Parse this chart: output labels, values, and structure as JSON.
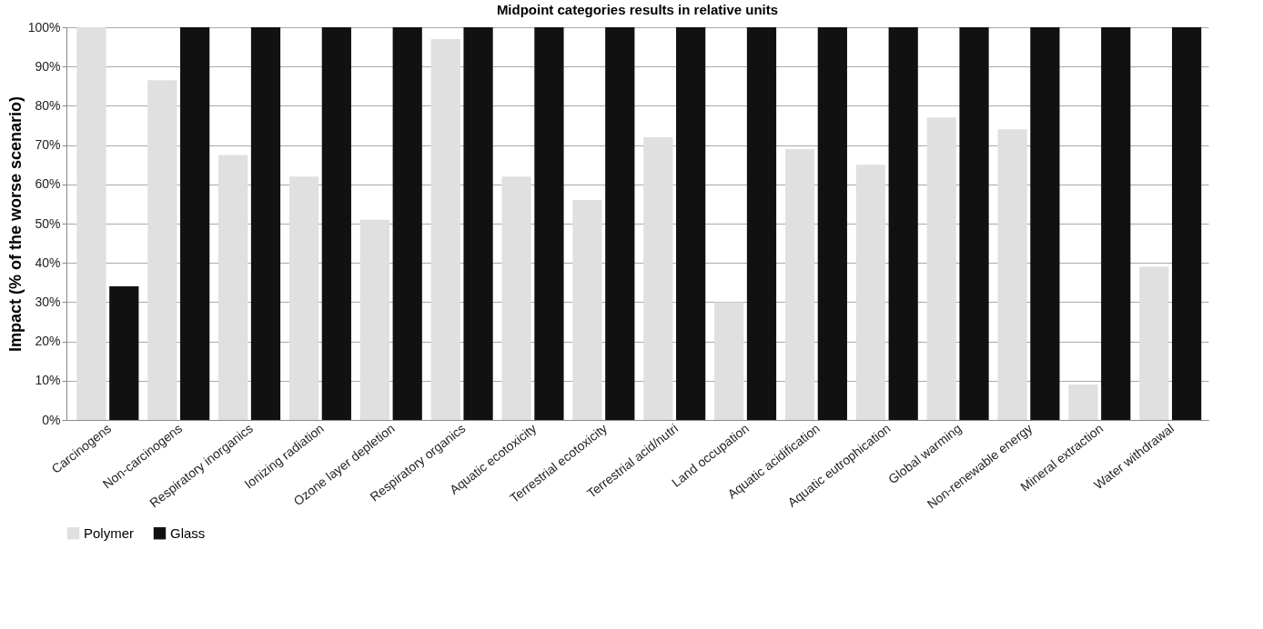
{
  "chart_data": {
    "type": "bar",
    "title": "Midpoint categories results in relative units",
    "ylabel": "Impact (% of the worse scenario)",
    "categories": [
      "Carcinogens",
      "Non-carcinogens",
      "Respiratory inorganics",
      "Ionizing radiation",
      "Ozone layer depletion",
      "Respiratory organics",
      "Aquatic ecotoxicity",
      "Terrestrial ecotoxicity",
      "Terrestrial acid/nutri",
      "Land occupation",
      "Aquatic acidification",
      "Aquatic eutrophication",
      "Global warming",
      "Non-renewable energy",
      "Mineral extraction",
      "Water withdrawal"
    ],
    "series": [
      {
        "name": "Polymer",
        "color": "#e0e0e0",
        "values": [
          100,
          86.5,
          67.5,
          62,
          51,
          97,
          62,
          56,
          72,
          30,
          69,
          65,
          77,
          74,
          9,
          39
        ]
      },
      {
        "name": "Glass",
        "color": "#111111",
        "values": [
          34,
          100,
          100,
          100,
          100,
          100,
          100,
          100,
          100,
          100,
          100,
          100,
          100,
          100,
          100,
          100
        ]
      }
    ],
    "ylim": [
      0,
      100
    ],
    "yticks": [
      {
        "value": 0,
        "label": "0%"
      },
      {
        "value": 10,
        "label": "10%"
      },
      {
        "value": 20,
        "label": "20%"
      },
      {
        "value": 30,
        "label": "30%"
      },
      {
        "value": 40,
        "label": "40%"
      },
      {
        "value": 50,
        "label": "50%"
      },
      {
        "value": 60,
        "label": "60%"
      },
      {
        "value": 70,
        "label": "70%"
      },
      {
        "value": 80,
        "label": "80%"
      },
      {
        "value": 90,
        "label": "90%"
      },
      {
        "value": 100,
        "label": "100%"
      }
    ],
    "grid": "y",
    "legend": "bottom"
  }
}
